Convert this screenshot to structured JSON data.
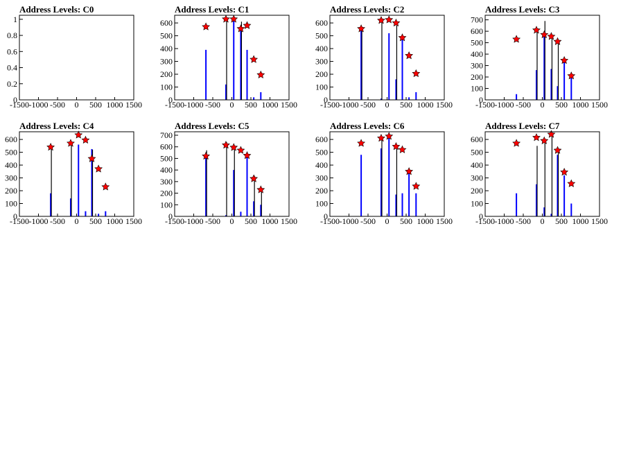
{
  "colors": {
    "histogram": "#0000ff",
    "reference_line": "#000000",
    "marker": "#ff0000",
    "marker_outline": "#000000"
  },
  "chart_data": [
    {
      "type": "bar",
      "title": "Address Levels: C0",
      "xlim": [
        -1500,
        1500
      ],
      "ylim": [
        0,
        1.05
      ],
      "xticks": [
        -1500,
        -1000,
        -500,
        0,
        500,
        1000,
        1500
      ],
      "yticks": [
        0,
        0.2,
        0.4,
        0.6,
        0.8,
        1
      ],
      "ytick_labels": [
        "0",
        "0.2",
        "0.4",
        "0.6",
        "0.8",
        "1"
      ],
      "blue_bars": [],
      "black_lines": [],
      "markers": []
    },
    {
      "type": "bar",
      "title": "Address Levels: C1",
      "xlim": [
        -1500,
        1500
      ],
      "ylim": [
        0,
        660
      ],
      "xticks": [
        -1500,
        -1000,
        -500,
        0,
        500,
        1000,
        1500
      ],
      "yticks": [
        0,
        100,
        200,
        300,
        400,
        500,
        600
      ],
      "blue_bars": [
        [
          -680,
          390
        ],
        [
          -155,
          120
        ],
        [
          50,
          640
        ],
        [
          235,
          540
        ],
        [
          400,
          390
        ],
        [
          575,
          20
        ],
        [
          760,
          60
        ]
      ],
      "black_lines": [
        [
          -155,
          640
        ],
        [
          235,
          610
        ]
      ],
      "markers": [
        [
          -680,
          570
        ],
        [
          -155,
          630
        ],
        [
          50,
          630
        ],
        [
          235,
          555
        ],
        [
          400,
          580
        ],
        [
          575,
          315
        ],
        [
          760,
          195
        ]
      ]
    },
    {
      "type": "bar",
      "title": "Address Levels: C2",
      "xlim": [
        -1500,
        1500
      ],
      "ylim": [
        0,
        660
      ],
      "xticks": [
        -1500,
        -1000,
        -500,
        0,
        500,
        1000,
        1500
      ],
      "yticks": [
        0,
        100,
        200,
        300,
        400,
        500,
        600
      ],
      "blue_bars": [
        [
          -680,
          540
        ],
        [
          -155,
          10
        ],
        [
          50,
          520
        ],
        [
          235,
          160
        ],
        [
          400,
          470
        ],
        [
          575,
          20
        ],
        [
          760,
          60
        ]
      ],
      "black_lines": [
        [
          -155,
          620
        ],
        [
          -680,
          560
        ],
        [
          235,
          580
        ]
      ],
      "markers": [
        [
          -680,
          555
        ],
        [
          -155,
          620
        ],
        [
          50,
          625
        ],
        [
          235,
          600
        ],
        [
          400,
          485
        ],
        [
          575,
          345
        ],
        [
          760,
          205
        ]
      ]
    },
    {
      "type": "bar",
      "title": "Address Levels: C3",
      "xlim": [
        -1500,
        1500
      ],
      "ylim": [
        0,
        740
      ],
      "xticks": [
        -1500,
        -1000,
        -500,
        0,
        500,
        1000,
        1500
      ],
      "yticks": [
        0,
        100,
        200,
        300,
        400,
        500,
        600,
        700
      ],
      "blue_bars": [
        [
          -680,
          50
        ],
        [
          -155,
          260
        ],
        [
          50,
          590
        ],
        [
          235,
          270
        ],
        [
          400,
          120
        ],
        [
          575,
          345
        ],
        [
          760,
          210
        ]
      ],
      "black_lines": [
        [
          -155,
          600
        ],
        [
          50,
          690
        ],
        [
          235,
          560
        ],
        [
          400,
          510
        ]
      ],
      "markers": [
        [
          -680,
          530
        ],
        [
          -155,
          610
        ],
        [
          50,
          570
        ],
        [
          235,
          555
        ],
        [
          400,
          510
        ],
        [
          575,
          345
        ],
        [
          760,
          210
        ]
      ]
    },
    {
      "type": "bar",
      "title": "Address Levels: C4",
      "xlim": [
        -1500,
        1500
      ],
      "ylim": [
        0,
        660
      ],
      "xticks": [
        -1500,
        -1000,
        -500,
        0,
        500,
        1000,
        1500
      ],
      "yticks": [
        0,
        100,
        200,
        300,
        400,
        500,
        600
      ],
      "blue_bars": [
        [
          -680,
          180
        ],
        [
          -155,
          140
        ],
        [
          50,
          560
        ],
        [
          235,
          40
        ],
        [
          400,
          525
        ],
        [
          575,
          20
        ],
        [
          760,
          40
        ]
      ],
      "black_lines": [
        [
          -680,
          540
        ],
        [
          -155,
          580
        ],
        [
          400,
          520
        ]
      ],
      "markers": [
        [
          -680,
          540
        ],
        [
          -155,
          570
        ],
        [
          50,
          635
        ],
        [
          235,
          595
        ],
        [
          400,
          450
        ],
        [
          575,
          370
        ],
        [
          760,
          230
        ]
      ]
    },
    {
      "type": "bar",
      "title": "Address Levels: C5",
      "xlim": [
        -1500,
        1500
      ],
      "ylim": [
        0,
        730
      ],
      "xticks": [
        -1500,
        -1000,
        -500,
        0,
        500,
        1000,
        1500
      ],
      "yticks": [
        0,
        100,
        200,
        300,
        400,
        500,
        600,
        700
      ],
      "blue_bars": [
        [
          -680,
          540
        ],
        [
          -155,
          10
        ],
        [
          50,
          400
        ],
        [
          235,
          40
        ],
        [
          400,
          510
        ],
        [
          575,
          130
        ],
        [
          760,
          100
        ]
      ],
      "black_lines": [
        [
          -680,
          570
        ],
        [
          -155,
          640
        ],
        [
          50,
          600
        ],
        [
          575,
          350
        ],
        [
          760,
          240
        ]
      ],
      "markers": [
        [
          -680,
          520
        ],
        [
          -155,
          615
        ],
        [
          50,
          595
        ],
        [
          235,
          570
        ],
        [
          400,
          525
        ],
        [
          575,
          325
        ],
        [
          760,
          230
        ]
      ]
    },
    {
      "type": "bar",
      "title": "Address Levels: C6",
      "xlim": [
        -1500,
        1500
      ],
      "ylim": [
        0,
        660
      ],
      "xticks": [
        -1500,
        -1000,
        -500,
        0,
        500,
        1000,
        1500
      ],
      "yticks": [
        0,
        100,
        200,
        300,
        400,
        500,
        600
      ],
      "blue_bars": [
        [
          -680,
          480
        ],
        [
          -155,
          530
        ],
        [
          50,
          610
        ],
        [
          235,
          170
        ],
        [
          400,
          180
        ],
        [
          575,
          340
        ],
        [
          760,
          180
        ]
      ],
      "black_lines": [
        [
          -155,
          610
        ],
        [
          235,
          560
        ]
      ],
      "markers": [
        [
          -680,
          570
        ],
        [
          -155,
          610
        ],
        [
          50,
          625
        ],
        [
          235,
          545
        ],
        [
          400,
          520
        ],
        [
          575,
          350
        ],
        [
          760,
          235
        ]
      ]
    },
    {
      "type": "bar",
      "title": "Address Levels: C7",
      "xlim": [
        -1500,
        1500
      ],
      "ylim": [
        0,
        660
      ],
      "xticks": [
        -1500,
        -1000,
        -500,
        0,
        500,
        1000,
        1500
      ],
      "yticks": [
        0,
        100,
        200,
        300,
        400,
        500,
        600
      ],
      "blue_bars": [
        [
          -680,
          180
        ],
        [
          -155,
          250
        ],
        [
          50,
          70
        ],
        [
          235,
          20
        ],
        [
          400,
          480
        ],
        [
          575,
          320
        ],
        [
          760,
          100
        ]
      ],
      "black_lines": [
        [
          -155,
          550
        ],
        [
          50,
          600
        ],
        [
          235,
          650
        ],
        [
          400,
          530
        ]
      ],
      "markers": [
        [
          -680,
          570
        ],
        [
          -155,
          615
        ],
        [
          50,
          590
        ],
        [
          235,
          640
        ],
        [
          400,
          515
        ],
        [
          575,
          345
        ],
        [
          760,
          255
        ]
      ]
    }
  ]
}
